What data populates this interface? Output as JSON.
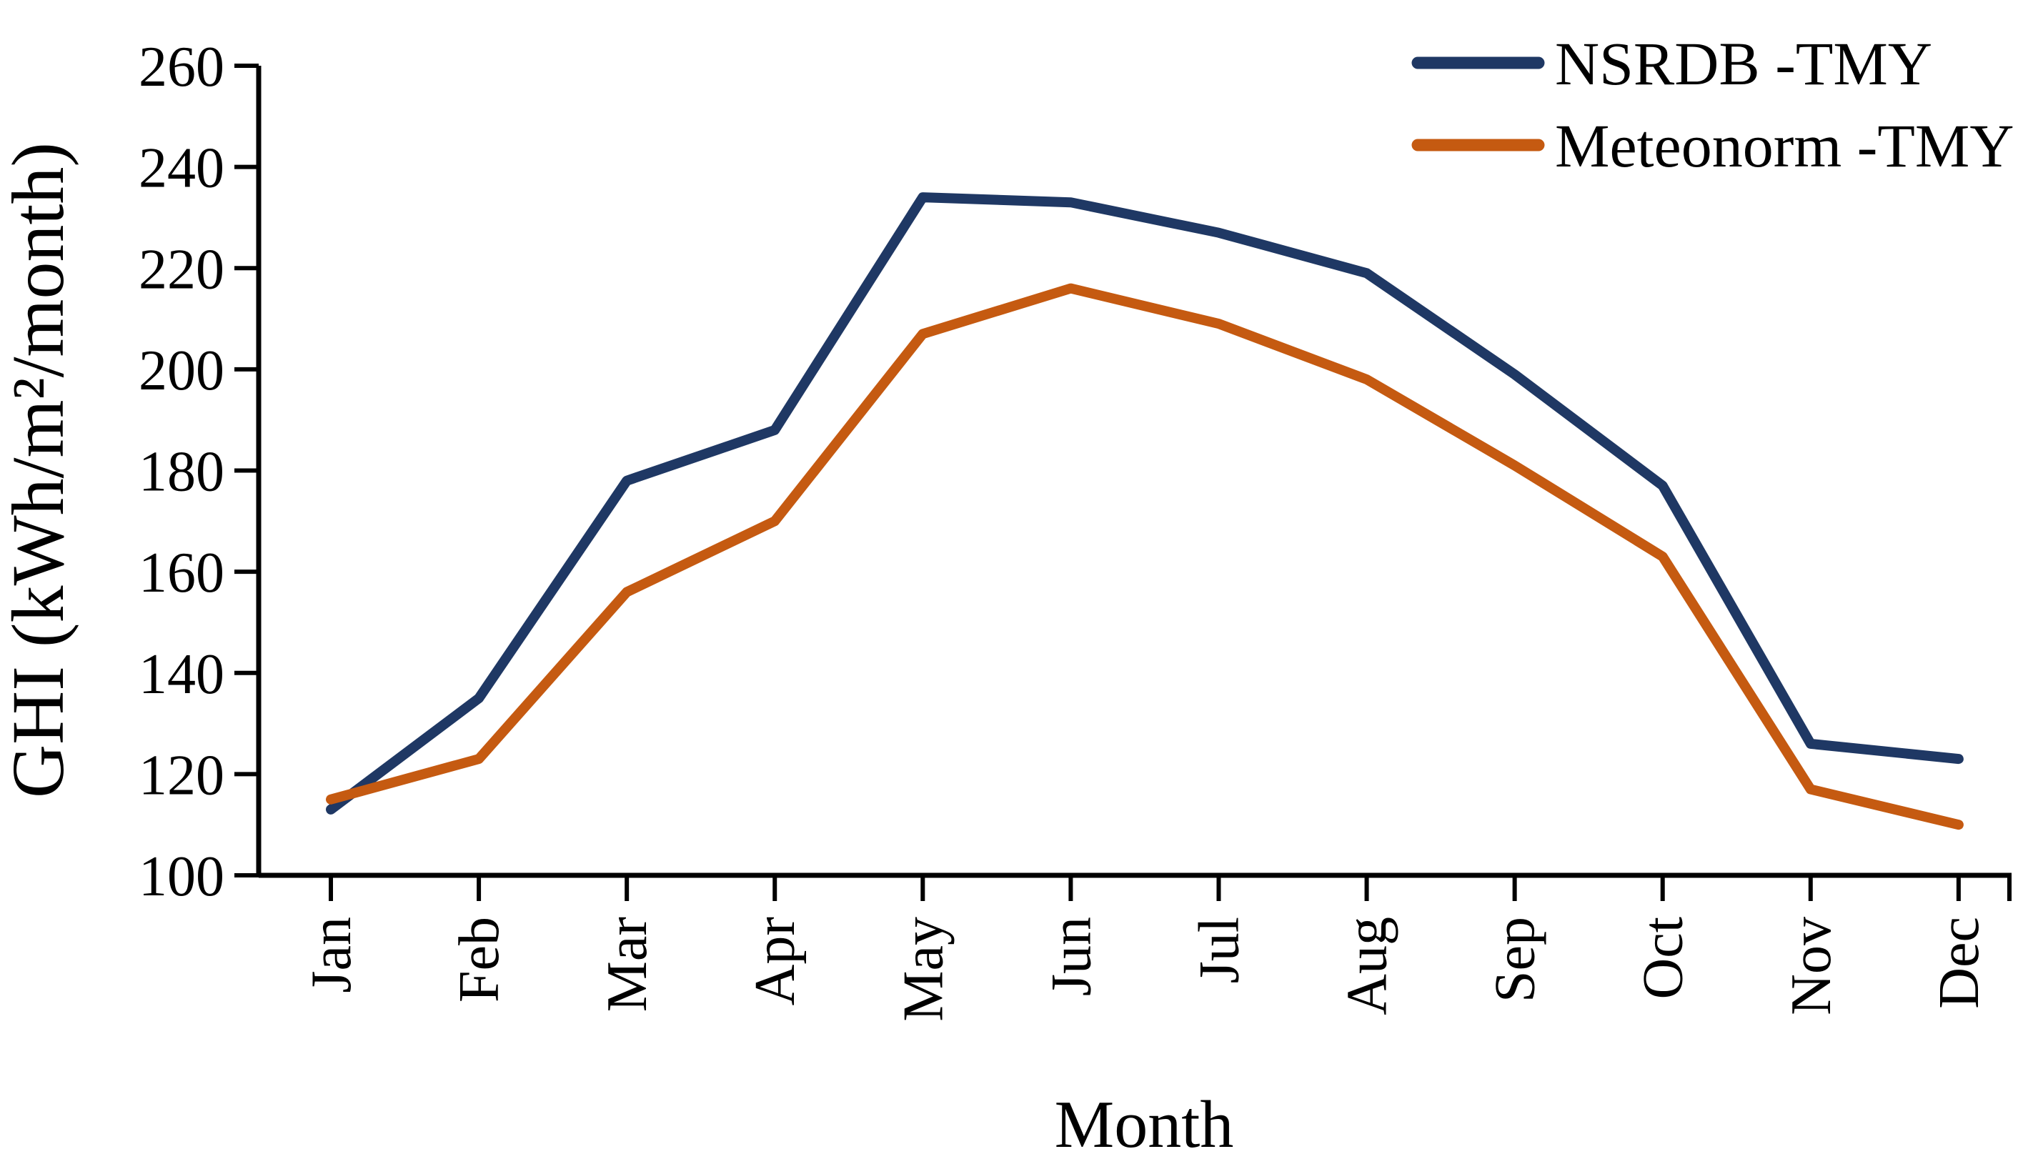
{
  "figure": {
    "background": "#ffffff",
    "axis_color": "#000000",
    "text_color": "#000000"
  },
  "chart_data": {
    "type": "line",
    "title": "",
    "xlabel": "Month",
    "ylabel": "GHI (kWh/m²/month)",
    "categories": [
      "Jan",
      "Feb",
      "Mar",
      "Apr",
      "May",
      "Jun",
      "Jul",
      "Aug",
      "Sep",
      "Oct",
      "Nov",
      "Dec"
    ],
    "y_ticks": [
      100,
      120,
      140,
      160,
      180,
      200,
      220,
      240,
      260
    ],
    "ylim": [
      100,
      260
    ],
    "grid": false,
    "legend_position": "top-right",
    "series": [
      {
        "name": "NSRDB -TMY",
        "color": "#1f3864",
        "values": [
          113,
          135,
          178,
          188,
          234,
          233,
          227,
          219,
          199,
          177,
          126,
          123
        ]
      },
      {
        "name": "Meteonorm -TMY",
        "color": "#c55a11",
        "values": [
          115,
          123,
          156,
          170,
          207,
          216,
          209,
          198,
          181,
          163,
          117,
          110
        ]
      }
    ]
  }
}
